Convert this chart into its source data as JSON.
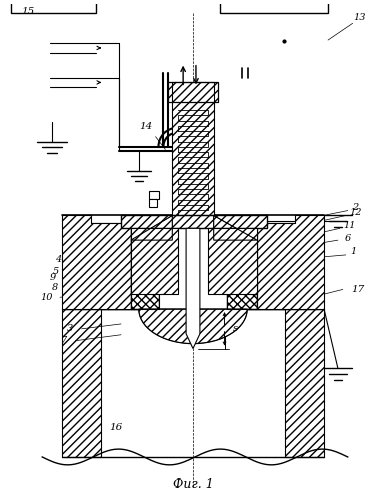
{
  "title": "Фиг. 1",
  "bg_color": "#ffffff",
  "line_color": "#000000"
}
